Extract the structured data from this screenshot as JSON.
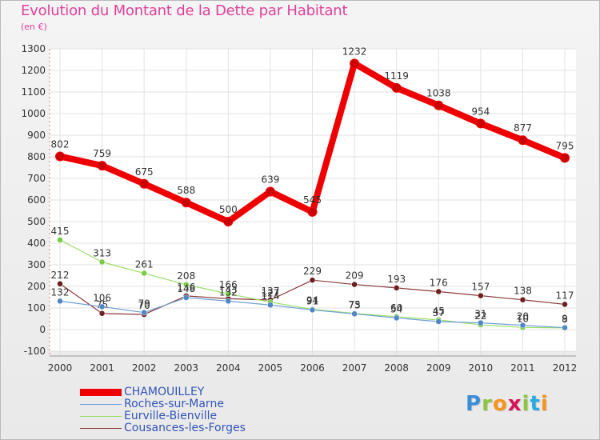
{
  "title": "Evolution du Montant de la Dette par Habitant",
  "subtitle": "(en €)",
  "logo": {
    "letters": [
      "P",
      "r",
      "o",
      "x",
      "i",
      "t",
      "i"
    ],
    "colors": [
      "#3a8fd6",
      "#8cc63f",
      "#f7931e",
      "#d4145a",
      "#8cc63f",
      "#29abe2",
      "#f7931e"
    ]
  },
  "chart_data": {
    "type": "line",
    "x": [
      "2000",
      "2001",
      "2002",
      "2003",
      "2004",
      "2005",
      "2006",
      "2007",
      "2008",
      "2009",
      "2010",
      "2011",
      "2012"
    ],
    "ylim": [
      -100,
      1300
    ],
    "yticks": [
      "1300",
      "1200",
      "1100",
      "1000",
      "900",
      "800",
      "700",
      "600",
      "500",
      "400",
      "300",
      "200",
      "100",
      "0",
      "-100"
    ],
    "ytick_values": [
      1300,
      1200,
      1100,
      1000,
      900,
      800,
      700,
      600,
      500,
      400,
      300,
      200,
      100,
      0,
      -100
    ],
    "grid": true,
    "legend_position": "bottom-left",
    "series": [
      {
        "name": "CHAMOUILLEY",
        "color": "#ee0000",
        "marker": "#cc0000",
        "values": [
          802,
          759,
          675,
          588,
          500,
          639,
          545,
          1232,
          1119,
          1038,
          954,
          877,
          795
        ],
        "labels": [
          "802",
          "759",
          "675",
          "588",
          "500",
          "639",
          "545",
          "1232",
          "1119",
          "1038",
          "954",
          "877",
          "795"
        ]
      },
      {
        "name": "Roches-sur-Marne",
        "color": "#6f9ed5",
        "marker": "#4f86c6",
        "values": [
          132,
          106,
          79,
          148,
          132,
          114,
          91,
          73,
          54,
          37,
          31,
          20,
          9
        ],
        "labels": [
          "132",
          "106",
          "79",
          "148",
          "132",
          "114",
          "91",
          "73",
          "54",
          "37",
          "31",
          "20",
          "9"
        ]
      },
      {
        "name": "Eurville-Bienville",
        "color": "#99e066",
        "marker": "#77cc44",
        "values": [
          415,
          313,
          261,
          208,
          166,
          127,
          94,
          75,
          60,
          45,
          22,
          10,
          8
        ],
        "labels": [
          "415",
          "313",
          "261",
          "208",
          "166",
          "127",
          "94",
          "75",
          "60",
          "45",
          "22",
          "10",
          "8"
        ]
      },
      {
        "name": "Cousances-les-Forges",
        "color": "#8a3a3a",
        "marker": "#6e1e1e",
        "values": [
          212,
          75,
          70,
          156,
          143,
          137,
          229,
          209,
          193,
          176,
          157,
          138,
          117
        ],
        "labels": [
          "212",
          "75",
          "70",
          "156",
          "143",
          "137",
          "229",
          "209",
          "193",
          "176",
          "157",
          "138",
          "117"
        ]
      }
    ]
  }
}
